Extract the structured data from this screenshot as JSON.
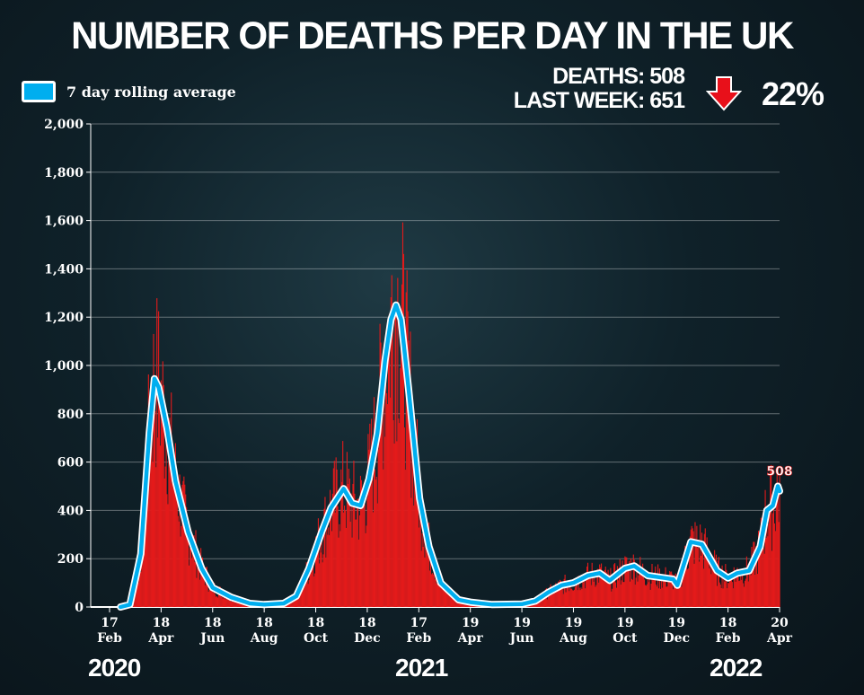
{
  "title": "NUMBER OF DEATHS PER DAY IN THE UK",
  "legend": {
    "label": "7 day rolling average",
    "color": "#00aeef"
  },
  "stats": {
    "deaths": "DEATHS: 508",
    "last_week": "LAST WEEK: 651",
    "change": "22%",
    "direction": "down",
    "arrow_color": "#e8101a"
  },
  "years": [
    "2020",
    "2021",
    "2022"
  ],
  "chart_data": {
    "type": "bar",
    "title": "NUMBER OF DEATHS PER DAY IN THE UK",
    "ylim": [
      0,
      2000
    ],
    "yticks": [
      "0",
      "200",
      "400",
      "600",
      "800",
      "1,000",
      "1,200",
      "1,400",
      "1,600",
      "1,800",
      "2,000"
    ],
    "grid": true,
    "legend_placement": "top-left",
    "xrange": [
      "2020-02-10",
      "2022-04-22"
    ],
    "xticks": [
      {
        "date": "2020-02-17",
        "day": "17",
        "month": "Feb"
      },
      {
        "date": "2020-04-18",
        "day": "18",
        "month": "Apr"
      },
      {
        "date": "2020-06-18",
        "day": "18",
        "month": "Jun"
      },
      {
        "date": "2020-08-18",
        "day": "18",
        "month": "Aug"
      },
      {
        "date": "2020-10-18",
        "day": "18",
        "month": "Oct"
      },
      {
        "date": "2020-12-18",
        "day": "18",
        "month": "Dec"
      },
      {
        "date": "2021-02-17",
        "day": "17",
        "month": "Feb"
      },
      {
        "date": "2021-04-19",
        "day": "19",
        "month": "Apr"
      },
      {
        "date": "2021-06-19",
        "day": "19",
        "month": "Jun"
      },
      {
        "date": "2021-08-19",
        "day": "19",
        "month": "Aug"
      },
      {
        "date": "2021-10-19",
        "day": "19",
        "month": "Oct"
      },
      {
        "date": "2021-12-19",
        "day": "19",
        "month": "Dec"
      },
      {
        "date": "2022-02-18",
        "day": "18",
        "month": "Feb"
      },
      {
        "date": "2022-04-20",
        "day": "20",
        "month": "Apr"
      }
    ],
    "bar_color": "#e31b1b",
    "rolling_average": {
      "name": "7 day rolling average",
      "color": "#00aeef",
      "points": [
        [
          "2020-03-01",
          0
        ],
        [
          "2020-03-12",
          10
        ],
        [
          "2020-03-25",
          220
        ],
        [
          "2020-04-04",
          720
        ],
        [
          "2020-04-10",
          945
        ],
        [
          "2020-04-15",
          910
        ],
        [
          "2020-04-25",
          740
        ],
        [
          "2020-05-05",
          520
        ],
        [
          "2020-05-20",
          310
        ],
        [
          "2020-06-05",
          160
        ],
        [
          "2020-06-18",
          80
        ],
        [
          "2020-07-10",
          40
        ],
        [
          "2020-08-01",
          15
        ],
        [
          "2020-08-18",
          10
        ],
        [
          "2020-09-10",
          15
        ],
        [
          "2020-09-25",
          45
        ],
        [
          "2020-10-10",
          160
        ],
        [
          "2020-10-25",
          310
        ],
        [
          "2020-11-05",
          410
        ],
        [
          "2020-11-20",
          490
        ],
        [
          "2020-11-30",
          430
        ],
        [
          "2020-12-10",
          420
        ],
        [
          "2020-12-20",
          530
        ],
        [
          "2020-12-30",
          720
        ],
        [
          "2021-01-08",
          1020
        ],
        [
          "2021-01-15",
          1190
        ],
        [
          "2021-01-21",
          1250
        ],
        [
          "2021-01-27",
          1190
        ],
        [
          "2021-02-05",
          900
        ],
        [
          "2021-02-18",
          450
        ],
        [
          "2021-03-01",
          250
        ],
        [
          "2021-03-15",
          100
        ],
        [
          "2021-04-05",
          30
        ],
        [
          "2021-04-19",
          20
        ],
        [
          "2021-05-15",
          10
        ],
        [
          "2021-06-19",
          12
        ],
        [
          "2021-07-05",
          25
        ],
        [
          "2021-07-20",
          60
        ],
        [
          "2021-08-05",
          90
        ],
        [
          "2021-08-19",
          100
        ],
        [
          "2021-09-05",
          130
        ],
        [
          "2021-09-19",
          140
        ],
        [
          "2021-10-01",
          110
        ],
        [
          "2021-10-19",
          160
        ],
        [
          "2021-10-30",
          170
        ],
        [
          "2021-11-15",
          130
        ],
        [
          "2021-12-05",
          120
        ],
        [
          "2021-12-15",
          115
        ],
        [
          "2021-12-20",
          90
        ],
        [
          "2021-12-28",
          180
        ],
        [
          "2022-01-05",
          270
        ],
        [
          "2022-01-18",
          260
        ],
        [
          "2022-02-05",
          150
        ],
        [
          "2022-02-18",
          120
        ],
        [
          "2022-03-01",
          140
        ],
        [
          "2022-03-15",
          150
        ],
        [
          "2022-03-28",
          250
        ],
        [
          "2022-04-05",
          400
        ],
        [
          "2022-04-12",
          420
        ],
        [
          "2022-04-18",
          500
        ],
        [
          "2022-04-20",
          480
        ]
      ]
    },
    "annotations": [
      {
        "date": "2022-04-20",
        "value": 508,
        "label": "508"
      }
    ]
  }
}
